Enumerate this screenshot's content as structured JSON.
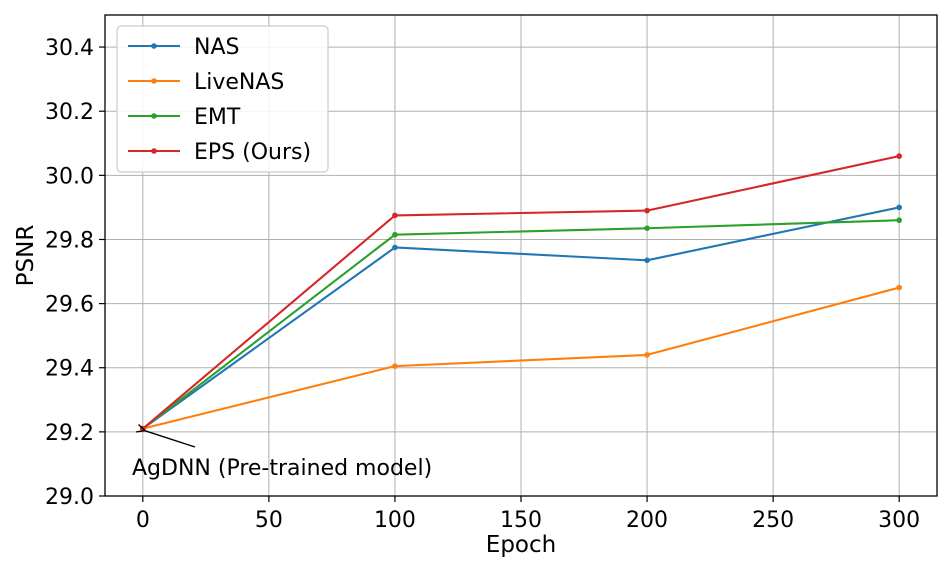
{
  "chart_data": {
    "type": "line",
    "title": "",
    "xlabel": "Epoch",
    "ylabel": "PSNR",
    "xlim": [
      -15,
      315
    ],
    "ylim": [
      29.0,
      30.5
    ],
    "xticks": [
      0,
      50,
      100,
      150,
      200,
      250,
      300
    ],
    "yticks": [
      29.0,
      29.2,
      29.4,
      29.6,
      29.8,
      30.0,
      30.2,
      30.4
    ],
    "grid": true,
    "legend_position": "upper-left",
    "x": [
      0,
      100,
      200,
      300
    ],
    "series": [
      {
        "name": "NAS",
        "color": "#1f77b4",
        "values": [
          29.21,
          29.775,
          29.735,
          29.9
        ]
      },
      {
        "name": "LiveNAS",
        "color": "#ff7f0e",
        "values": [
          29.21,
          29.405,
          29.44,
          29.65
        ]
      },
      {
        "name": "EMT",
        "color": "#2ca02c",
        "values": [
          29.21,
          29.815,
          29.835,
          29.86
        ]
      },
      {
        "name": "EPS (Ours)",
        "color": "#d62728",
        "values": [
          29.21,
          29.875,
          29.89,
          30.06
        ]
      }
    ],
    "annotation": {
      "text": "AgDNN (Pre-trained model)",
      "x": 0,
      "y": 29.21
    }
  }
}
